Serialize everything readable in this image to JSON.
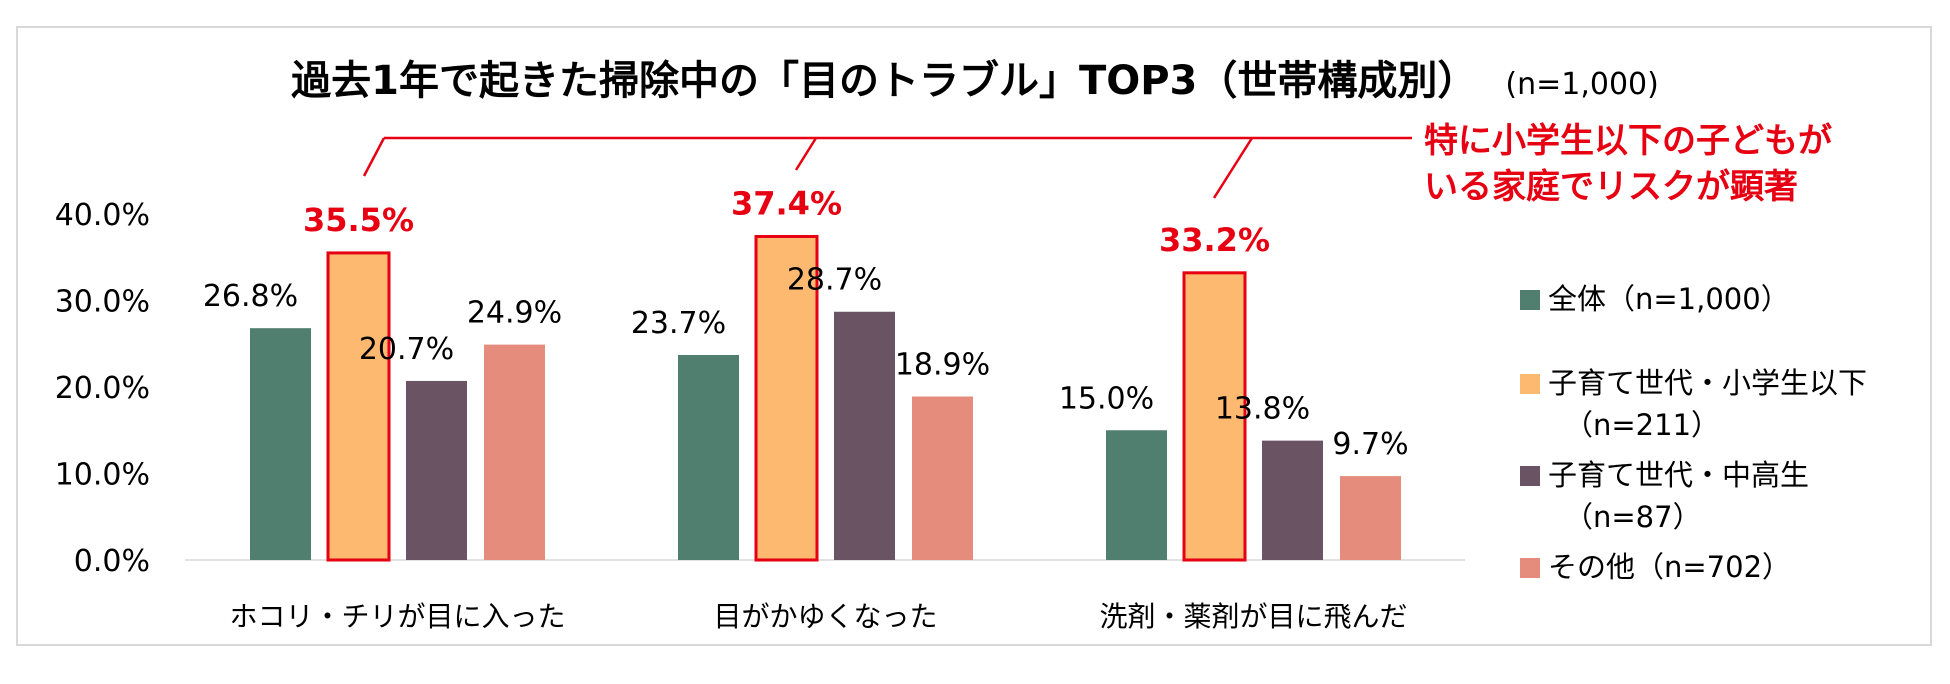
{
  "title": "過去1年で起きた掃除中の「目のトラブル」TOP3（世帯構成別）",
  "title_n": "(n=1,000)",
  "callout": {
    "lines": [
      "特に小学生以下の子どもが",
      "いる家庭でリスクが顕著"
    ],
    "color": "#e60012"
  },
  "legend": {
    "placement": "right",
    "items": [
      {
        "line1": "全体（n=1,000）",
        "line2": ""
      },
      {
        "line1": "子育て世代・小学生以下",
        "line2": "（n=211）"
      },
      {
        "line1": "子育て世代・中高生",
        "line2": "（n=87）"
      },
      {
        "line1": "その他（n=702）",
        "line2": ""
      }
    ]
  },
  "chart_data": {
    "type": "bar",
    "categories": [
      "ホコリ・チリが目に入った",
      "目がかゆくなった",
      "洗剤・薬剤が目に飛んだ"
    ],
    "series": [
      {
        "name": "全体（n=1,000）",
        "color": "#507e6f",
        "values": [
          26.8,
          23.7,
          15.0
        ]
      },
      {
        "name": "子育て世代・小学生以下（n=211）",
        "color": "#fcb96f",
        "values": [
          35.5,
          37.4,
          33.2
        ],
        "highlight": true
      },
      {
        "name": "子育て世代・中高生（n=87）",
        "color": "#6a5464",
        "values": [
          20.7,
          28.7,
          13.8
        ]
      },
      {
        "name": "その他（n=702）",
        "color": "#e58c7c",
        "values": [
          24.9,
          18.9,
          9.7
        ]
      }
    ],
    "value_labels": [
      [
        "26.8%",
        "23.7%",
        "15.0%"
      ],
      [
        "35.5%",
        "37.4%",
        "33.2%"
      ],
      [
        "20.7%",
        "28.7%",
        "13.8%"
      ],
      [
        "24.9%",
        "18.9%",
        "9.7%"
      ]
    ],
    "y_ticks": [
      0,
      10,
      20,
      30,
      40
    ],
    "y_tick_labels": [
      "0.0%",
      "10.0%",
      "20.0%",
      "30.0%",
      "40.0%"
    ],
    "ylim": [
      0,
      40
    ],
    "grid": false,
    "highlight_color": "#e60012",
    "xlabel": "",
    "ylabel": ""
  }
}
